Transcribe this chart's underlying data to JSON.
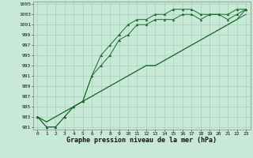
{
  "xlabel": "Graphe pression niveau de la mer (hPa)",
  "bg_color": "#c8e8d8",
  "grid_color": "#a0c8b0",
  "line_color": "#1a6b2a",
  "marker_color": "#1a6b2a",
  "xlim": [
    -0.5,
    23.5
  ],
  "ylim": [
    980.5,
    1005.5
  ],
  "yticks": [
    981,
    983,
    985,
    987,
    989,
    991,
    993,
    995,
    997,
    999,
    1001,
    1003,
    1005
  ],
  "xticks": [
    0,
    1,
    2,
    3,
    4,
    5,
    6,
    7,
    8,
    9,
    10,
    11,
    12,
    13,
    14,
    15,
    16,
    17,
    18,
    19,
    20,
    21,
    22,
    23
  ],
  "series1": [
    983,
    981,
    981,
    983,
    985,
    986,
    991,
    995,
    997,
    999,
    1001,
    1002,
    1002,
    1003,
    1003,
    1004,
    1004,
    1004,
    1003,
    1003,
    1003,
    1003,
    1004,
    1004
  ],
  "series2": [
    983,
    981,
    981,
    983,
    985,
    986,
    991,
    993,
    995,
    998,
    999,
    1001,
    1001,
    1002,
    1002,
    1002,
    1003,
    1003,
    1002,
    1003,
    1003,
    1002,
    1003,
    1004
  ],
  "series3": [
    983,
    982,
    983,
    984,
    985,
    986,
    987,
    988,
    989,
    990,
    991,
    992,
    993,
    993,
    994,
    995,
    996,
    997,
    998,
    999,
    1000,
    1001,
    1002,
    1003
  ],
  "series4": [
    983,
    982,
    983,
    984,
    985,
    986,
    987,
    988,
    989,
    990,
    991,
    992,
    993,
    993,
    994,
    995,
    996,
    997,
    998,
    999,
    1000,
    1001,
    1002,
    1004
  ],
  "tick_fontsize": 4.5,
  "xlabel_fontsize": 6.0
}
